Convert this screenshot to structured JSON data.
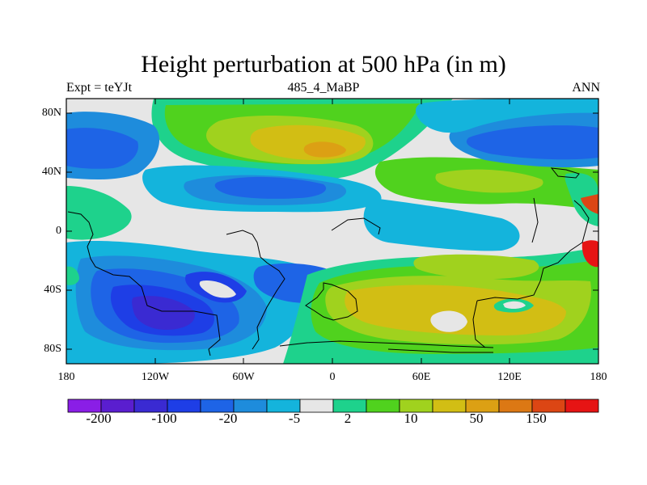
{
  "title": "Height perturbation at 500 hPa (in m)",
  "left_label": "Expt = teYJt",
  "center_label": "485_4_MaBP",
  "right_label": "ANN",
  "lat_ticks": [
    "80N",
    "40N",
    "0",
    "40S",
    "80S"
  ],
  "lon_ticks": [
    "180",
    "120W",
    "60W",
    "0",
    "60E",
    "120E",
    "180"
  ],
  "colorbar": {
    "colors": [
      "#8a1ee6",
      "#5a1ecf",
      "#3a2ad2",
      "#1e3ee6",
      "#1e64e6",
      "#1e8cdc",
      "#14b4dc",
      "#e6e6e6",
      "#1ed28c",
      "#50d21e",
      "#a0d21e",
      "#d2be14",
      "#dca014",
      "#dc7814",
      "#dc4614",
      "#e61414"
    ],
    "labels": [
      "-200",
      "-100",
      "-20",
      "-5",
      "2",
      "10",
      "50",
      "150"
    ]
  },
  "palette": {
    "purple": "#3a2ad2",
    "dblue": "#1e3ee6",
    "mblue": "#1e64e6",
    "lblue": "#1e8cdc",
    "cyan": "#14b4dc",
    "grey": "#e6e6e6",
    "teal": "#1ed28c",
    "green": "#50d21e",
    "lgreen": "#a0d21e",
    "yellow": "#d2be14",
    "orange": "#dca014",
    "dorange": "#dc7814",
    "red": "#e61414"
  }
}
